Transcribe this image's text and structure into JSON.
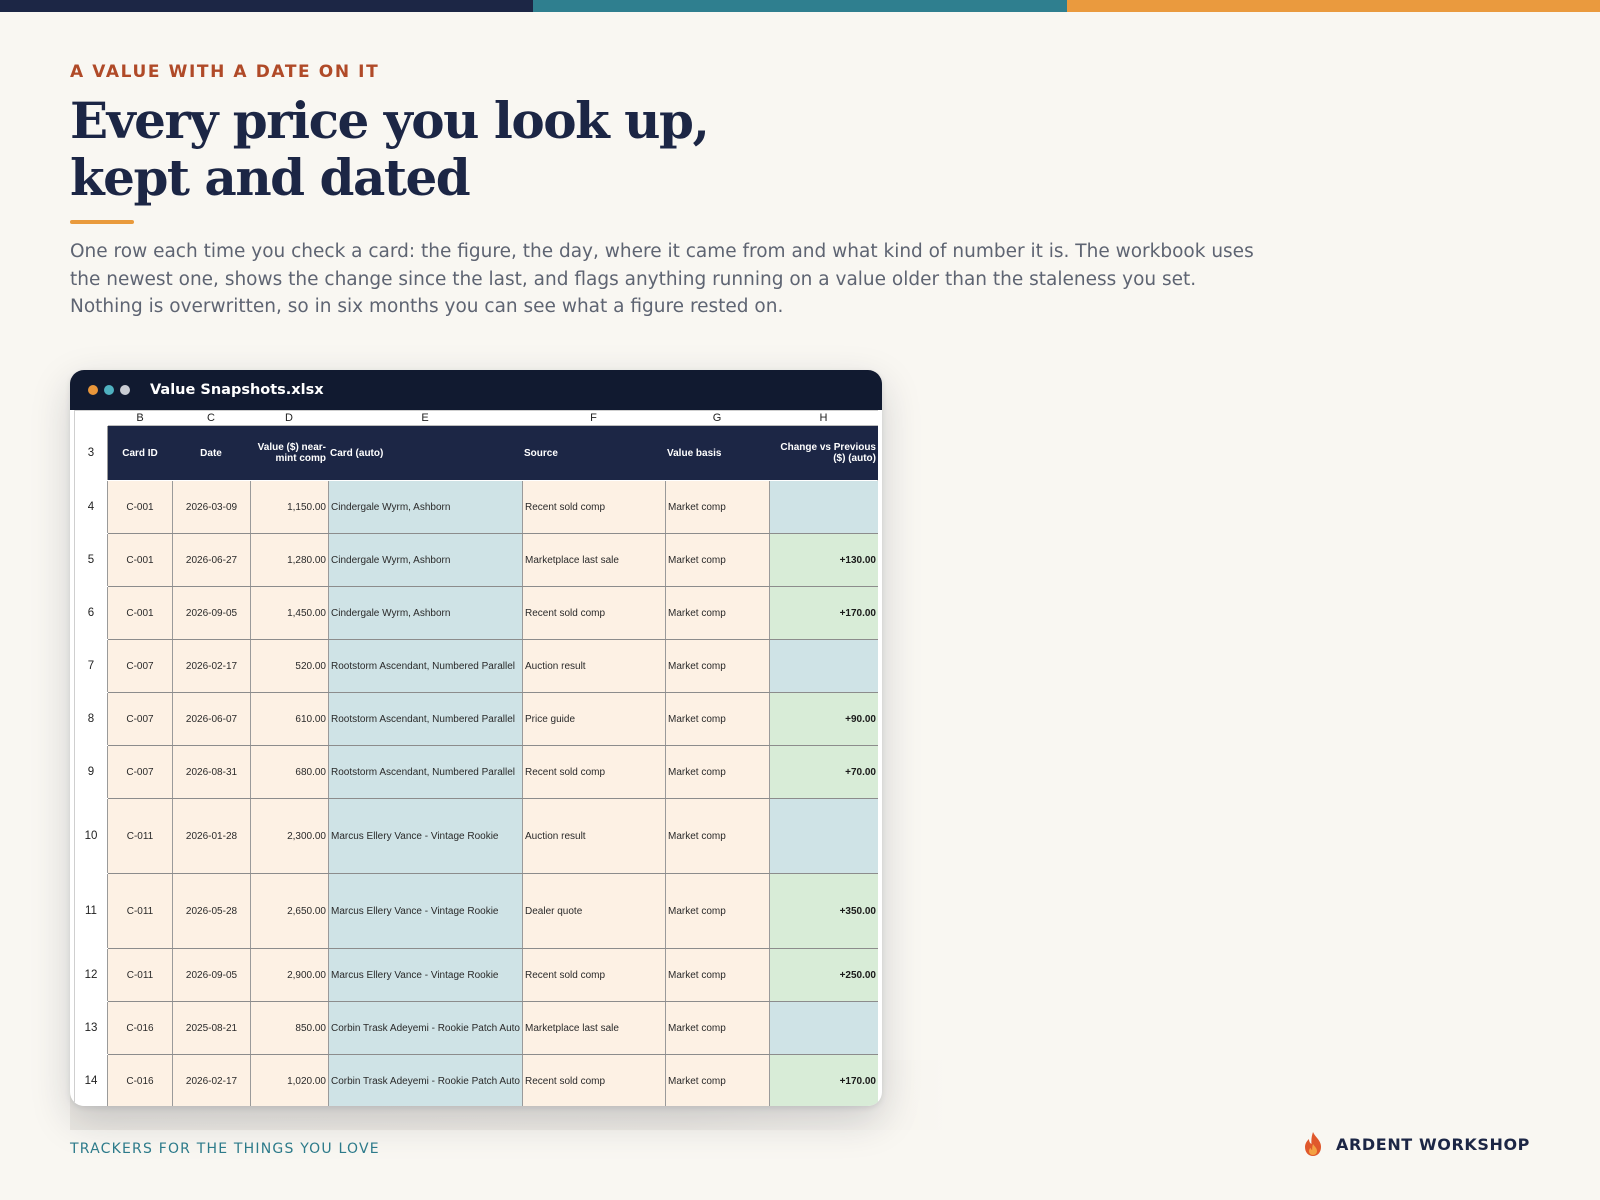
{
  "colors": {
    "bar_navy": "#1c2645",
    "bar_teal": "#2f7f8f",
    "bar_orange": "#ea9a3e",
    "eyebrow": "#b04a28",
    "accent_underline": "#e99a3c",
    "footer_teal": "#2c7a8a",
    "header_fill": "#1c2645",
    "cell_cream": "#fdf1e4",
    "cell_teal": "#cfe3e6",
    "cell_green": "#d8ecd7",
    "dot_orange": "#e9963a",
    "dot_teal": "#4fb1c0",
    "dot_grey": "#c9ccd3"
  },
  "hero": {
    "eyebrow": "A VALUE WITH A DATE ON IT",
    "title_line1": "Every price you look up,",
    "title_line2": "kept and dated",
    "intro": "One row each time you check a card: the figure, the day, where it came from and what kind of number it is. The workbook uses the newest one, shows the change since the last, and flags anything running on a value older than the staleness you set. Nothing is overwritten, so in six months you can see what a figure rested on."
  },
  "window": {
    "filename": "Value Snapshots.xlsx"
  },
  "sheet": {
    "column_letters": [
      "B",
      "C",
      "D",
      "E",
      "F",
      "G",
      "H"
    ],
    "header_row_number": "3",
    "headers": {
      "card_id": "Card ID",
      "date": "Date",
      "value": "Value ($) near-mint comp",
      "card": "Card (auto)",
      "source": "Source",
      "basis": "Value basis",
      "change": "Change vs Previous ($) (auto)"
    },
    "rows": [
      {
        "num": "4",
        "id": "C-001",
        "date": "2026-03-09",
        "value": "1,150.00",
        "card": "Cindergale Wyrm, Ashborn",
        "source": "Recent sold comp",
        "basis": "Market comp",
        "change": ""
      },
      {
        "num": "5",
        "id": "C-001",
        "date": "2026-06-27",
        "value": "1,280.00",
        "card": "Cindergale Wyrm, Ashborn",
        "source": "Marketplace last sale",
        "basis": "Market comp",
        "change": "+130.00"
      },
      {
        "num": "6",
        "id": "C-001",
        "date": "2026-09-05",
        "value": "1,450.00",
        "card": "Cindergale Wyrm, Ashborn",
        "source": "Recent sold comp",
        "basis": "Market comp",
        "change": "+170.00"
      },
      {
        "num": "7",
        "id": "C-007",
        "date": "2026-02-17",
        "value": "520.00",
        "card": "Rootstorm Ascendant, Numbered Parallel",
        "source": "Auction result",
        "basis": "Market comp",
        "change": ""
      },
      {
        "num": "8",
        "id": "C-007",
        "date": "2026-06-07",
        "value": "610.00",
        "card": "Rootstorm Ascendant, Numbered Parallel",
        "source": "Price guide",
        "basis": "Market comp",
        "change": "+90.00"
      },
      {
        "num": "9",
        "id": "C-007",
        "date": "2026-08-31",
        "value": "680.00",
        "card": "Rootstorm Ascendant, Numbered Parallel",
        "source": "Recent sold comp",
        "basis": "Market comp",
        "change": "+70.00"
      },
      {
        "num": "10",
        "id": "C-011",
        "date": "2026-01-28",
        "value": "2,300.00",
        "card": "Marcus Ellery Vance - Vintage Rookie",
        "source": "Auction result",
        "basis": "Market comp",
        "change": ""
      },
      {
        "num": "11",
        "id": "C-011",
        "date": "2026-05-28",
        "value": "2,650.00",
        "card": "Marcus Ellery Vance - Vintage Rookie",
        "source": "Dealer quote",
        "basis": "Market comp",
        "change": "+350.00"
      },
      {
        "num": "12",
        "id": "C-011",
        "date": "2026-09-05",
        "value": "2,900.00",
        "card": "Marcus Ellery Vance - Vintage Rookie",
        "source": "Recent sold comp",
        "basis": "Market comp",
        "change": "+250.00"
      },
      {
        "num": "13",
        "id": "C-016",
        "date": "2025-08-21",
        "value": "850.00",
        "card": "Corbin Trask Adeyemi - Rookie Patch Auto",
        "source": "Marketplace last sale",
        "basis": "Market comp",
        "change": ""
      },
      {
        "num": "14",
        "id": "C-016",
        "date": "2026-02-17",
        "value": "1,020.00",
        "card": "Corbin Trask Adeyemi - Rookie Patch Auto",
        "source": "Recent sold comp",
        "basis": "Market comp",
        "change": "+170.00"
      }
    ]
  },
  "footer": {
    "tagline": "TRACKERS FOR THE THINGS YOU LOVE",
    "brand": "ARDENT WORKSHOP",
    "brand_icon": "flame-icon"
  }
}
